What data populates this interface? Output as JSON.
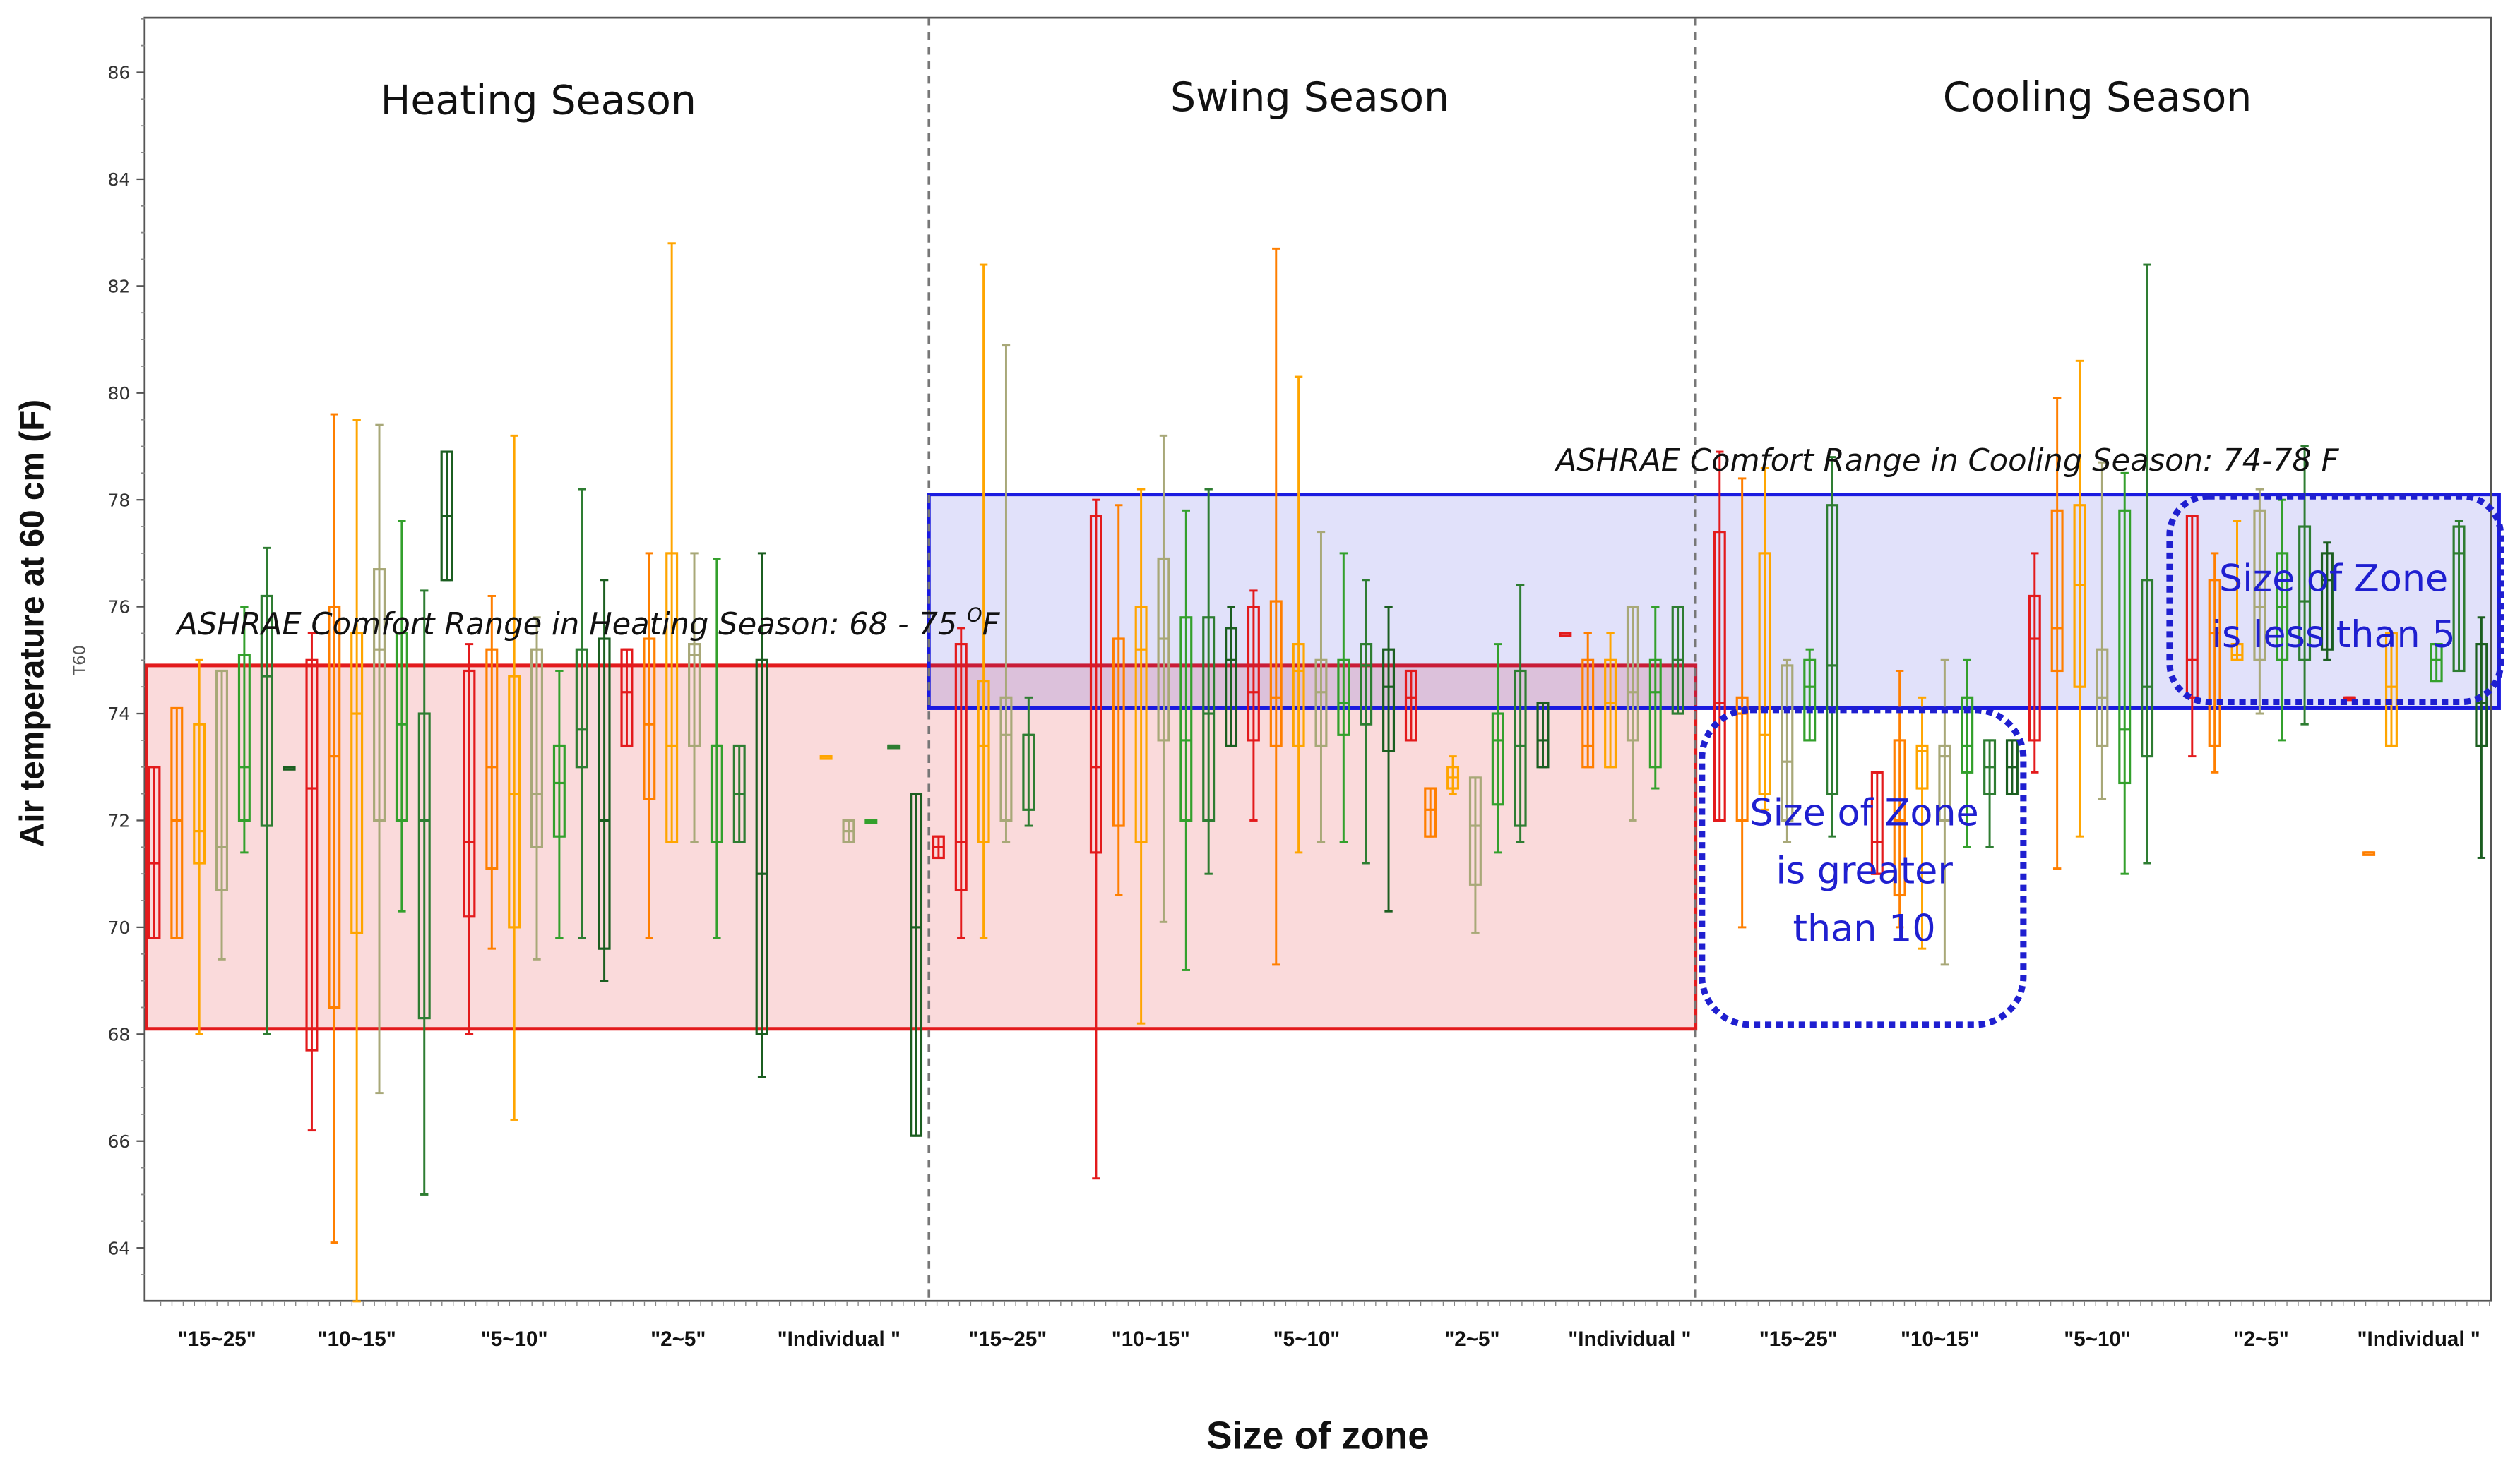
{
  "chart_data": {
    "type": "boxplot",
    "title": "",
    "xlabel": "Size of zone",
    "ylabel": "Air temperature at 60 cm (F)",
    "ylabel_secondary": "T60",
    "ylim": [
      63,
      87
    ],
    "yticks": [
      64,
      66,
      68,
      70,
      72,
      74,
      76,
      78,
      80,
      82,
      84,
      86
    ],
    "seasons": [
      {
        "name": "Heating Season",
        "categories": [
          "\"15~25\"",
          "\"10~15\"",
          "\"5~10\"",
          "\"2~5\"",
          "\"Individual \""
        ]
      },
      {
        "name": "Swing Season",
        "categories": [
          "\"15~25\"",
          "\"10~15\"",
          "\"5~10\"",
          "\"2~5\"",
          "\"Individual \""
        ]
      },
      {
        "name": "Cooling Season",
        "categories": [
          "\"15~25\"",
          "\"10~15\"",
          "\"5~10\"",
          "\"2~5\"",
          "\"Individual \""
        ]
      }
    ],
    "comfort_ranges": [
      {
        "label": "ASHRAE Comfort Range in Heating Season: 68 - 75 ",
        "superscript": "O",
        "unit": "F",
        "min": 68.1,
        "max": 74.9,
        "color": "#e31a1c"
      },
      {
        "label": "ASHRAE Comfort Range in Cooling Season: 74-78 F",
        "min": 74.1,
        "max": 78.1,
        "color": "#1a1ae0"
      }
    ],
    "annotations": [
      {
        "lines": [
          "Size of Zone",
          "is greater",
          "than 10"
        ]
      },
      {
        "lines": [
          "Size of Zone",
          "is less than 5"
        ]
      }
    ],
    "boxes": [
      {
        "x": 96,
        "c": "#e31a1c",
        "wl": 69.8,
        "q1": 69.8,
        "med": 71.2,
        "q3": 73.0,
        "wh": 73.0
      },
      {
        "x": 110,
        "c": "#ff7f00",
        "wl": 69.8,
        "q1": 69.8,
        "med": 72.0,
        "q3": 74.1,
        "wh": 74.1
      },
      {
        "x": 124,
        "c": "#ffa500",
        "wl": 68.0,
        "q1": 71.2,
        "med": 71.8,
        "q3": 73.8,
        "wh": 75.0
      },
      {
        "x": 138,
        "c": "#a8a878",
        "wl": 69.4,
        "q1": 70.7,
        "med": 71.5,
        "q3": 74.8,
        "wh": 74.8
      },
      {
        "x": 152,
        "c": "#33a02c",
        "wl": 71.4,
        "q1": 72.0,
        "med": 73.0,
        "q3": 75.1,
        "wh": 76.0
      },
      {
        "x": 166,
        "c": "#2e7d32",
        "wl": 68.0,
        "q1": 71.9,
        "med": 74.7,
        "q3": 76.2,
        "wh": 77.1
      },
      {
        "x": 180,
        "c": "#1b5e20",
        "wl": 73.0,
        "q1": 73.0,
        "med": 73.0,
        "q3": 73.0,
        "wh": 73.0
      },
      {
        "x": 194,
        "c": "#e31a1c",
        "wl": 66.2,
        "q1": 67.7,
        "med": 72.6,
        "q3": 75.0,
        "wh": 75.5
      },
      {
        "x": 208,
        "c": "#ff7f00",
        "wl": 64.1,
        "q1": 68.5,
        "med": 73.2,
        "q3": 76.0,
        "wh": 79.6
      },
      {
        "x": 222,
        "c": "#ffa500",
        "wl": 63.0,
        "q1": 69.9,
        "med": 74.0,
        "q3": 75.5,
        "wh": 79.5
      },
      {
        "x": 236,
        "c": "#a8a878",
        "wl": 66.9,
        "q1": 72.0,
        "med": 75.2,
        "q3": 76.7,
        "wh": 79.4
      },
      {
        "x": 250,
        "c": "#33a02c",
        "wl": 70.3,
        "q1": 72.0,
        "med": 73.8,
        "q3": 75.5,
        "wh": 77.6
      },
      {
        "x": 264,
        "c": "#2e7d32",
        "wl": 65.0,
        "q1": 68.3,
        "med": 72.0,
        "q3": 74.0,
        "wh": 76.3
      },
      {
        "x": 278,
        "c": "#1b5e20",
        "wl": 76.5,
        "q1": 76.5,
        "med": 77.7,
        "q3": 78.9,
        "wh": 78.9
      },
      {
        "x": 292,
        "c": "#e31a1c",
        "wl": 68.0,
        "q1": 70.2,
        "med": 71.6,
        "q3": 74.8,
        "wh": 75.3
      },
      {
        "x": 306,
        "c": "#ff7f00",
        "wl": 69.6,
        "q1": 71.1,
        "med": 73.0,
        "q3": 75.2,
        "wh": 76.2
      },
      {
        "x": 320,
        "c": "#ffa500",
        "wl": 66.4,
        "q1": 70.0,
        "med": 72.5,
        "q3": 74.7,
        "wh": 79.2
      },
      {
        "x": 334,
        "c": "#a8a878",
        "wl": 69.4,
        "q1": 71.5,
        "med": 72.5,
        "q3": 75.2,
        "wh": 75.8
      },
      {
        "x": 348,
        "c": "#33a02c",
        "wl": 69.8,
        "q1": 71.7,
        "med": 72.7,
        "q3": 73.4,
        "wh": 74.8
      },
      {
        "x": 362,
        "c": "#2e7d32",
        "wl": 69.8,
        "q1": 73.0,
        "med": 73.7,
        "q3": 75.2,
        "wh": 78.2
      },
      {
        "x": 376,
        "c": "#1b5e20",
        "wl": 69.0,
        "q1": 69.6,
        "med": 72.0,
        "q3": 75.4,
        "wh": 76.5
      },
      {
        "x": 390,
        "c": "#e31a1c",
        "wl": 73.4,
        "q1": 73.4,
        "med": 74.4,
        "q3": 75.2,
        "wh": 75.2
      },
      {
        "x": 404,
        "c": "#ff7f00",
        "wl": 69.8,
        "q1": 72.4,
        "med": 73.8,
        "q3": 75.4,
        "wh": 77.0
      },
      {
        "x": 418,
        "c": "#ffa500",
        "wl": 71.6,
        "q1": 71.6,
        "med": 73.4,
        "q3": 77.0,
        "wh": 82.8
      },
      {
        "x": 432,
        "c": "#a8a878",
        "wl": 71.6,
        "q1": 73.4,
        "med": 75.1,
        "q3": 75.3,
        "wh": 77.0
      },
      {
        "x": 446,
        "c": "#33a02c",
        "wl": 69.8,
        "q1": 71.6,
        "med": 73.4,
        "q3": 73.4,
        "wh": 76.9
      },
      {
        "x": 460,
        "c": "#2e7d32",
        "wl": 71.6,
        "q1": 71.6,
        "med": 72.5,
        "q3": 73.4,
        "wh": 73.4
      },
      {
        "x": 474,
        "c": "#1b5e20",
        "wl": 67.2,
        "q1": 68.0,
        "med": 71.0,
        "q3": 75.0,
        "wh": 77.0
      },
      {
        "x": 514,
        "c": "#ffa500",
        "wl": 73.2,
        "q1": 73.2,
        "med": 73.2,
        "q3": 73.2,
        "wh": 73.2
      },
      {
        "x": 528,
        "c": "#a8a878",
        "wl": 71.6,
        "q1": 71.6,
        "med": 71.8,
        "q3": 72.0,
        "wh": 72.0
      },
      {
        "x": 542,
        "c": "#33a02c",
        "wl": 72.0,
        "q1": 72.0,
        "med": 72.0,
        "q3": 72.0,
        "wh": 72.0
      },
      {
        "x": 556,
        "c": "#2e7d32",
        "wl": 73.4,
        "q1": 73.4,
        "med": 73.4,
        "q3": 73.4,
        "wh": 73.4
      },
      {
        "x": 570,
        "c": "#1b5e20",
        "wl": 66.1,
        "q1": 66.1,
        "med": 70.0,
        "q3": 72.5,
        "wh": 72.5
      },
      {
        "x": 584,
        "c": "#e31a1c",
        "wl": 71.3,
        "q1": 71.3,
        "med": 71.5,
        "q3": 71.7,
        "wh": 71.7
      },
      {
        "x": 598,
        "c": "#e31a1c",
        "wl": 69.8,
        "q1": 70.7,
        "med": 71.6,
        "q3": 75.3,
        "wh": 75.6
      },
      {
        "x": 612,
        "c": "#ffa500",
        "wl": 69.8,
        "q1": 71.6,
        "med": 73.4,
        "q3": 74.6,
        "wh": 82.4
      },
      {
        "x": 626,
        "c": "#a8a878",
        "wl": 71.6,
        "q1": 72.0,
        "med": 73.6,
        "q3": 74.3,
        "wh": 80.9
      },
      {
        "x": 640,
        "c": "#2e7d32",
        "wl": 71.9,
        "q1": 72.2,
        "med": 73.6,
        "q3": 73.6,
        "wh": 74.3
      },
      {
        "x": 682,
        "c": "#e31a1c",
        "wl": 65.3,
        "q1": 71.4,
        "med": 73.0,
        "q3": 77.7,
        "wh": 78.0
      },
      {
        "x": 696,
        "c": "#ff7f00",
        "wl": 70.6,
        "q1": 71.9,
        "med": 75.4,
        "q3": 75.4,
        "wh": 77.9
      },
      {
        "x": 710,
        "c": "#ffa500",
        "wl": 68.2,
        "q1": 71.6,
        "med": 75.2,
        "q3": 76.0,
        "wh": 78.2
      },
      {
        "x": 724,
        "c": "#a8a878",
        "wl": 70.1,
        "q1": 73.5,
        "med": 75.4,
        "q3": 76.9,
        "wh": 79.2
      },
      {
        "x": 738,
        "c": "#33a02c",
        "wl": 69.2,
        "q1": 72.0,
        "med": 73.5,
        "q3": 75.8,
        "wh": 77.8
      },
      {
        "x": 752,
        "c": "#2e7d32",
        "wl": 71.0,
        "q1": 72.0,
        "med": 74.0,
        "q3": 75.8,
        "wh": 78.2
      },
      {
        "x": 766,
        "c": "#1b5e20",
        "wl": 73.4,
        "q1": 73.4,
        "med": 75.0,
        "q3": 75.6,
        "wh": 76.0
      },
      {
        "x": 780,
        "c": "#e31a1c",
        "wl": 72.0,
        "q1": 73.5,
        "med": 74.4,
        "q3": 76.0,
        "wh": 76.3
      },
      {
        "x": 794,
        "c": "#ff7f00",
        "wl": 69.3,
        "q1": 73.4,
        "med": 74.3,
        "q3": 76.1,
        "wh": 82.7
      },
      {
        "x": 808,
        "c": "#ffa500",
        "wl": 71.4,
        "q1": 73.4,
        "med": 74.8,
        "q3": 75.3,
        "wh": 80.3
      },
      {
        "x": 822,
        "c": "#a8a878",
        "wl": 71.6,
        "q1": 73.4,
        "med": 74.4,
        "q3": 75.0,
        "wh": 77.4
      },
      {
        "x": 836,
        "c": "#33a02c",
        "wl": 71.6,
        "q1": 73.6,
        "med": 74.2,
        "q3": 75.0,
        "wh": 77.0
      },
      {
        "x": 850,
        "c": "#2e7d32",
        "wl": 71.2,
        "q1": 73.8,
        "med": 74.9,
        "q3": 75.3,
        "wh": 76.5
      },
      {
        "x": 864,
        "c": "#1b5e20",
        "wl": 70.3,
        "q1": 73.3,
        "med": 74.5,
        "q3": 75.2,
        "wh": 76.0
      },
      {
        "x": 878,
        "c": "#e31a1c",
        "wl": 73.5,
        "q1": 73.5,
        "med": 74.3,
        "q3": 74.8,
        "wh": 74.8
      },
      {
        "x": 890,
        "c": "#ff7f00",
        "wl": 71.7,
        "q1": 71.7,
        "med": 72.2,
        "q3": 72.6,
        "wh": 72.6
      },
      {
        "x": 904,
        "c": "#ffa500",
        "wl": 72.5,
        "q1": 72.6,
        "med": 72.8,
        "q3": 73.0,
        "wh": 73.2
      },
      {
        "x": 918,
        "c": "#a8a878",
        "wl": 69.9,
        "q1": 70.8,
        "med": 71.9,
        "q3": 72.8,
        "wh": 72.8
      },
      {
        "x": 932,
        "c": "#33a02c",
        "wl": 71.4,
        "q1": 72.3,
        "med": 73.5,
        "q3": 74.0,
        "wh": 75.3
      },
      {
        "x": 946,
        "c": "#2e7d32",
        "wl": 71.6,
        "q1": 71.9,
        "med": 73.4,
        "q3": 74.8,
        "wh": 76.4
      },
      {
        "x": 960,
        "c": "#1b5e20",
        "wl": 73.0,
        "q1": 73.0,
        "med": 73.5,
        "q3": 74.2,
        "wh": 74.2
      },
      {
        "x": 974,
        "c": "#e31a1c",
        "wl": 75.5,
        "q1": 75.5,
        "med": 75.5,
        "q3": 75.5,
        "wh": 75.5
      },
      {
        "x": 988,
        "c": "#ff7f00",
        "wl": 73.0,
        "q1": 73.0,
        "med": 73.4,
        "q3": 75.0,
        "wh": 75.5
      },
      {
        "x": 1002,
        "c": "#ffa500",
        "wl": 73.0,
        "q1": 73.0,
        "med": 74.2,
        "q3": 75.0,
        "wh": 75.5
      },
      {
        "x": 1016,
        "c": "#a8a878",
        "wl": 72.0,
        "q1": 73.5,
        "med": 74.4,
        "q3": 76.0,
        "wh": 76.0
      },
      {
        "x": 1030,
        "c": "#33a02c",
        "wl": 72.6,
        "q1": 73.0,
        "med": 74.4,
        "q3": 75.0,
        "wh": 76.0
      },
      {
        "x": 1044,
        "c": "#2e7d32",
        "wl": 74.0,
        "q1": 74.0,
        "med": 75.0,
        "q3": 76.0,
        "wh": 76.0
      },
      {
        "x": 1070,
        "c": "#e31a1c",
        "wl": 72.0,
        "q1": 72.0,
        "med": 74.2,
        "q3": 77.4,
        "wh": 78.9
      },
      {
        "x": 1084,
        "c": "#ff7f00",
        "wl": 70.0,
        "q1": 72.0,
        "med": 74.0,
        "q3": 74.3,
        "wh": 78.4
      },
      {
        "x": 1098,
        "c": "#ffa500",
        "wl": 72.2,
        "q1": 72.5,
        "med": 73.6,
        "q3": 77.0,
        "wh": 78.6
      },
      {
        "x": 1112,
        "c": "#a8a878",
        "wl": 71.6,
        "q1": 72.0,
        "med": 73.1,
        "q3": 74.9,
        "wh": 75.0
      },
      {
        "x": 1126,
        "c": "#33a02c",
        "wl": 73.5,
        "q1": 73.5,
        "med": 74.5,
        "q3": 75.0,
        "wh": 75.2
      },
      {
        "x": 1140,
        "c": "#2e7d32",
        "wl": 71.7,
        "q1": 72.5,
        "med": 74.9,
        "q3": 77.9,
        "wh": 78.8
      },
      {
        "x": 1168,
        "c": "#e31a1c",
        "wl": 71.0,
        "q1": 71.0,
        "med": 71.6,
        "q3": 72.9,
        "wh": 72.9
      },
      {
        "x": 1182,
        "c": "#ff7f00",
        "wl": 70.0,
        "q1": 70.6,
        "med": 72.0,
        "q3": 73.5,
        "wh": 74.8
      },
      {
        "x": 1196,
        "c": "#ffa500",
        "wl": 69.6,
        "q1": 72.6,
        "med": 73.3,
        "q3": 73.4,
        "wh": 74.3
      },
      {
        "x": 1210,
        "c": "#a8a878",
        "wl": 69.3,
        "q1": 72.0,
        "med": 73.2,
        "q3": 73.4,
        "wh": 75.0
      },
      {
        "x": 1224,
        "c": "#33a02c",
        "wl": 71.5,
        "q1": 72.9,
        "med": 73.4,
        "q3": 74.3,
        "wh": 75.0
      },
      {
        "x": 1238,
        "c": "#2e7d32",
        "wl": 71.5,
        "q1": 72.5,
        "med": 73.0,
        "q3": 73.5,
        "wh": 73.5
      },
      {
        "x": 1252,
        "c": "#1b5e20",
        "wl": 72.5,
        "q1": 72.5,
        "med": 73.0,
        "q3": 73.5,
        "wh": 73.5
      },
      {
        "x": 1266,
        "c": "#e31a1c",
        "wl": 72.9,
        "q1": 73.5,
        "med": 75.4,
        "q3": 76.2,
        "wh": 77.0
      },
      {
        "x": 1280,
        "c": "#ff7f00",
        "wl": 71.1,
        "q1": 74.8,
        "med": 75.6,
        "q3": 77.8,
        "wh": 79.9
      },
      {
        "x": 1294,
        "c": "#ffa500",
        "wl": 71.7,
        "q1": 74.5,
        "med": 76.4,
        "q3": 77.9,
        "wh": 80.6
      },
      {
        "x": 1308,
        "c": "#a8a878",
        "wl": 72.4,
        "q1": 73.4,
        "med": 74.3,
        "q3": 75.2,
        "wh": 78.7
      },
      {
        "x": 1322,
        "c": "#33a02c",
        "wl": 71.0,
        "q1": 72.7,
        "med": 73.7,
        "q3": 77.8,
        "wh": 78.5
      },
      {
        "x": 1336,
        "c": "#2e7d32",
        "wl": 71.2,
        "q1": 73.2,
        "med": 74.5,
        "q3": 76.5,
        "wh": 82.4
      },
      {
        "x": 1364,
        "c": "#e31a1c",
        "wl": 73.2,
        "q1": 74.3,
        "med": 75.0,
        "q3": 77.7,
        "wh": 77.7
      },
      {
        "x": 1378,
        "c": "#ff7f00",
        "wl": 72.9,
        "q1": 73.4,
        "med": 75.5,
        "q3": 76.5,
        "wh": 77.0
      },
      {
        "x": 1392,
        "c": "#ffa500",
        "wl": 75.0,
        "q1": 75.0,
        "med": 75.1,
        "q3": 75.3,
        "wh": 77.6
      },
      {
        "x": 1406,
        "c": "#a8a878",
        "wl": 74.0,
        "q1": 75.0,
        "med": 76.0,
        "q3": 77.8,
        "wh": 78.2
      },
      {
        "x": 1420,
        "c": "#33a02c",
        "wl": 73.5,
        "q1": 75.0,
        "med": 76.0,
        "q3": 77.0,
        "wh": 78.0
      },
      {
        "x": 1434,
        "c": "#2e7d32",
        "wl": 73.8,
        "q1": 75.0,
        "med": 76.1,
        "q3": 77.5,
        "wh": 79.0
      },
      {
        "x": 1448,
        "c": "#1b5e20",
        "wl": 75.0,
        "q1": 75.2,
        "med": 76.5,
        "q3": 77.0,
        "wh": 77.2
      },
      {
        "x": 1462,
        "c": "#e31a1c",
        "wl": 74.3,
        "q1": 74.3,
        "med": 74.3,
        "q3": 74.3,
        "wh": 74.3
      },
      {
        "x": 1474,
        "c": "#ff7f00",
        "wl": 71.4,
        "q1": 71.4,
        "med": 71.4,
        "q3": 71.4,
        "wh": 71.4
      },
      {
        "x": 1488,
        "c": "#ffa500",
        "wl": 73.4,
        "q1": 73.4,
        "med": 74.5,
        "q3": 75.5,
        "wh": 75.5
      },
      {
        "x": 1516,
        "c": "#33a02c",
        "wl": 74.6,
        "q1": 74.6,
        "med": 75.0,
        "q3": 75.3,
        "wh": 75.3
      },
      {
        "x": 1530,
        "c": "#2e7d32",
        "wl": 74.8,
        "q1": 74.8,
        "med": 77.0,
        "q3": 77.5,
        "wh": 77.6
      },
      {
        "x": 1544,
        "c": "#1b5e20",
        "wl": 71.3,
        "q1": 73.4,
        "med": 74.2,
        "q3": 75.3,
        "wh": 75.8
      }
    ]
  }
}
